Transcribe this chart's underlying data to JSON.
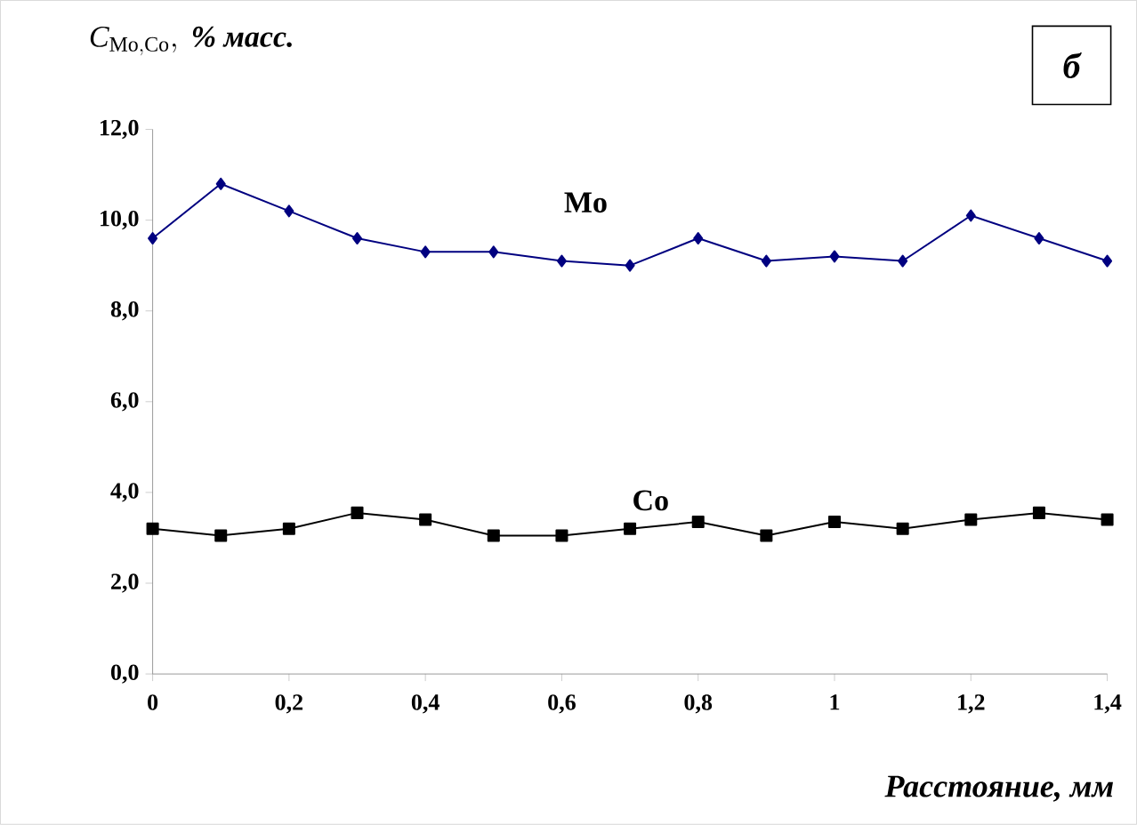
{
  "chart_data": {
    "type": "line",
    "ylabel": "\\mathbf{\\mathit{C}_{\\mathrm{Mo, Co}}},\\ \\textbf{\\textit{\\% масс.}}",
    "xlabel": "Расстояние, мм",
    "x": [
      0,
      0.1,
      0.2,
      0.3,
      0.4,
      0.5,
      0.6,
      0.7,
      0.8,
      0.9,
      1.0,
      1.1,
      1.2,
      1.3,
      1.4
    ],
    "series": [
      {
        "name": "Mo",
        "color": "#000080",
        "marker": "diamond",
        "values": [
          9.6,
          10.8,
          10.2,
          9.6,
          9.3,
          9.3,
          9.1,
          9.0,
          9.6,
          9.1,
          9.2,
          9.1,
          10.1,
          9.6,
          9.1
        ]
      },
      {
        "name": "Co",
        "color": "#000000",
        "marker": "square",
        "values": [
          3.2,
          3.05,
          3.2,
          3.55,
          3.4,
          3.05,
          3.05,
          3.2,
          3.35,
          3.05,
          3.35,
          3.2,
          3.4,
          3.55,
          3.4
        ]
      }
    ],
    "xlim": [
      0,
      1.4
    ],
    "ylim": [
      0,
      12
    ],
    "xticks": [
      0,
      {
        "value": 0.2,
        "label": "0,2"
      },
      {
        "value": 0.4,
        "label": "0,4"
      },
      {
        "value": 0.6,
        "label": "0,6"
      },
      {
        "value": 0.8,
        "label": "0,8"
      },
      1,
      {
        "value": 1.2,
        "label": "1,2"
      },
      {
        "value": 1.4,
        "label": "1,4"
      }
    ],
    "yticks": [
      {
        "value": 0,
        "label": "0,0"
      },
      {
        "value": 2,
        "label": "2,0"
      },
      {
        "value": 4,
        "label": "4,0"
      },
      {
        "value": 6,
        "label": "6,0"
      },
      {
        "value": 8,
        "label": "8,0"
      },
      {
        "value": 10,
        "label": "10,0"
      },
      {
        "value": 12,
        "label": "12,0"
      }
    ],
    "grid": false,
    "line_style": "solid",
    "annotations": [
      "б"
    ]
  }
}
